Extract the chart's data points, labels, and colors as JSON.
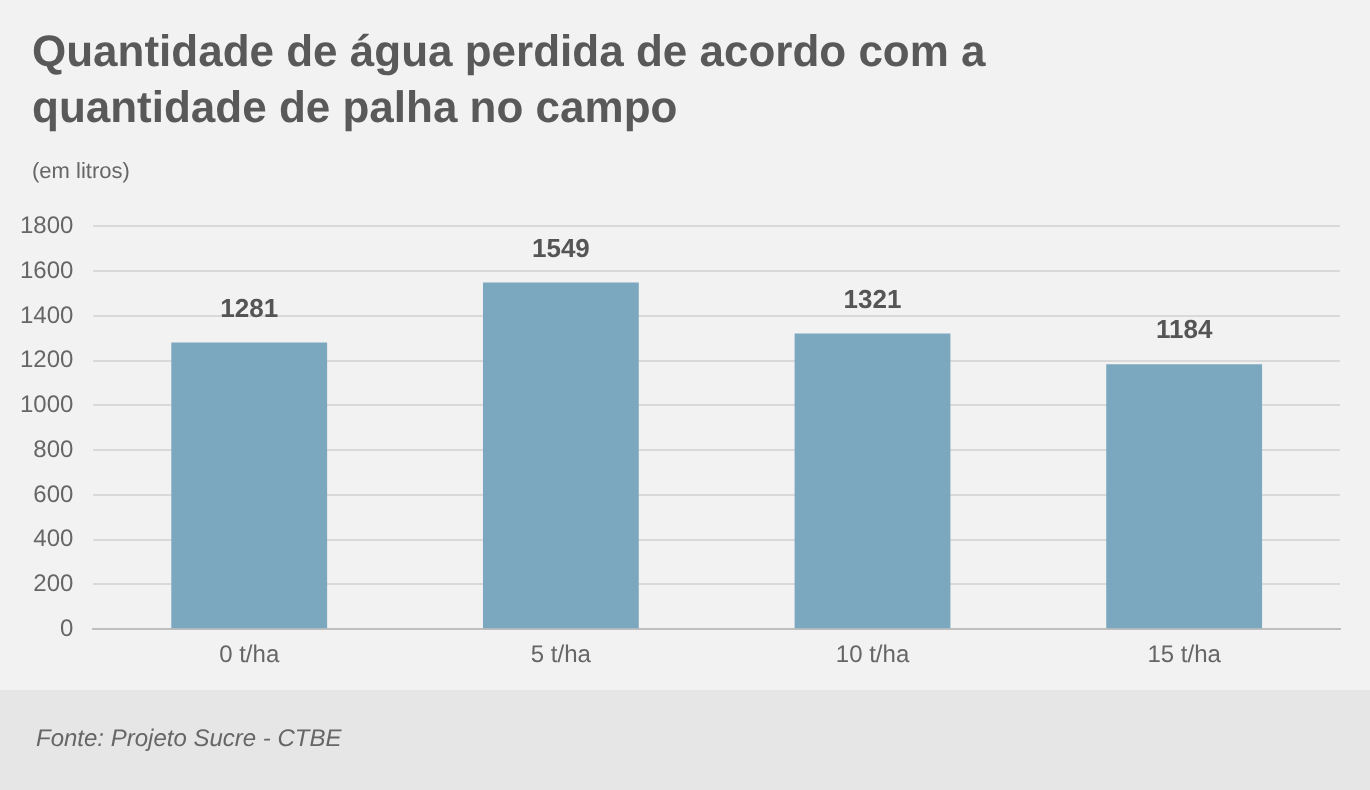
{
  "chart_data": {
    "type": "bar",
    "title": "Quantidade de água perdida de acordo com a quantidade de palha no campo",
    "ylabel": "(em litros)",
    "categories": [
      "0 t/ha",
      "5 t/ha",
      "10 t/ha",
      "15 t/ha"
    ],
    "values": [
      1281,
      1549,
      1321,
      1184
    ],
    "color": "#7ba7bf",
    "ylim": [
      0,
      1800
    ],
    "yticks": [
      0,
      200,
      400,
      600,
      800,
      1000,
      1200,
      1400,
      1600,
      1800
    ],
    "grid": "y",
    "data_labels": true,
    "annotations": [
      "Fonte: Projeto Sucre - CTBE"
    ]
  }
}
